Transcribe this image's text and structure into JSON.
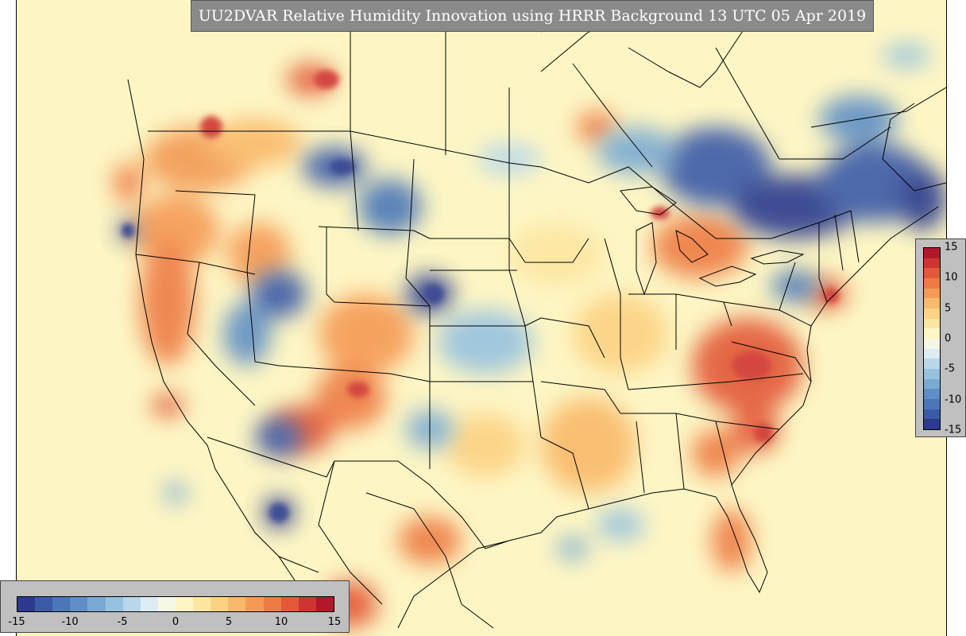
{
  "title": "UU2DVAR Relative Humidity Innovation using HRRR Background 13 UTC 05 Apr 2019",
  "colorbar": {
    "min": -15,
    "max": 15,
    "tick_labels": [
      "-15",
      "-10",
      "-5",
      "0",
      "5",
      "10",
      "15"
    ],
    "colors": [
      "#2c3b8f",
      "#3a5aa8",
      "#4a77b8",
      "#5f8fc6",
      "#7aaad3",
      "#96c2e0",
      "#b8d8ea",
      "#dcecf2",
      "#f6f8e6",
      "#fdf6c4",
      "#fde6a2",
      "#fcd283",
      "#f9b96a",
      "#f59a55",
      "#ee7b44",
      "#e25838",
      "#cf3430",
      "#b2182b"
    ],
    "orientation_horizontal": "bottom-left",
    "orientation_vertical": "right"
  },
  "map": {
    "projection": "Lambert conformal",
    "region": "CONUS (HRRR domain)",
    "background_color": "#fdf6c4",
    "boundary_color": "#000000"
  }
}
